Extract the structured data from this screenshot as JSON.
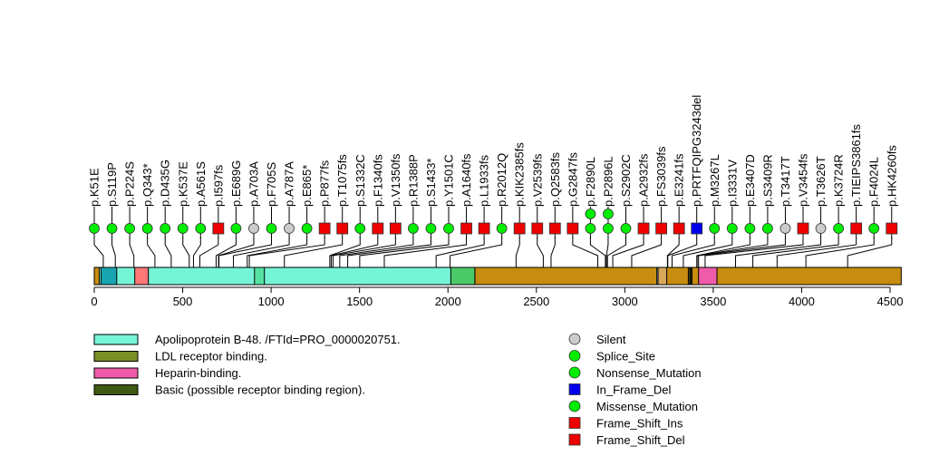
{
  "chart_data": {
    "type": "lollipop",
    "title": "",
    "protein_length": 4563,
    "xlim": [
      0,
      4563
    ],
    "x_ticks": [
      0,
      500,
      1000,
      1500,
      2000,
      2500,
      3000,
      3500,
      4000,
      4500
    ],
    "domains": [
      {
        "name": "Apolipoprotein B-48. /FTId=PRO_0000020751.",
        "start": 28,
        "end": 2152,
        "color": "#76F5D6"
      },
      {
        "name": "LDL receptor binding.",
        "start": 3359,
        "end": 3367,
        "color": "#7A8E23"
      },
      {
        "name": "Heparin-binding.",
        "start": 3417,
        "end": 3521,
        "color": "#EE5BA9"
      },
      {
        "name": "Basic (possible receptor binding region).",
        "start": 3372,
        "end": 3380,
        "color": "#3E5A12"
      }
    ],
    "bar_segments": [
      {
        "start": 0,
        "end": 4563,
        "color": "#C88C10"
      },
      {
        "start": 28,
        "end": 2152,
        "color": "#76F5D6"
      },
      {
        "start": 38,
        "end": 127,
        "color": "#19A6B0"
      },
      {
        "start": 229,
        "end": 306,
        "color": "#FF7777"
      },
      {
        "start": 906,
        "end": 962,
        "color": "#56E3A2"
      },
      {
        "start": 2016,
        "end": 2152,
        "color": "#4CCA6A"
      },
      {
        "start": 3181,
        "end": 3188,
        "color": "#A9E6F5"
      },
      {
        "start": 3188,
        "end": 3237,
        "color": "#D7A75A"
      },
      {
        "start": 3359,
        "end": 3367,
        "color": "#7A8E23"
      },
      {
        "start": 3372,
        "end": 3380,
        "color": "#3E5A12"
      },
      {
        "start": 3417,
        "end": 3521,
        "color": "#EE5BA9"
      }
    ],
    "mutation_types": [
      {
        "name": "Silent",
        "shape": "circle",
        "color": "#CCCCCC"
      },
      {
        "name": "Splice_Site",
        "shape": "circle",
        "color": "#00EE00"
      },
      {
        "name": "Nonsense_Mutation",
        "shape": "circle",
        "color": "#00EE00"
      },
      {
        "name": "In_Frame_Del",
        "shape": "square",
        "color": "#0000EE"
      },
      {
        "name": "Missense_Mutation",
        "shape": "circle",
        "color": "#00EE00"
      },
      {
        "name": "Frame_Shift_Ins",
        "shape": "square",
        "color": "#EE0000"
      },
      {
        "name": "Frame_Shift_Del",
        "shape": "square",
        "color": "#EE0000"
      }
    ],
    "mutations": [
      {
        "label": "p.K51E",
        "pos": 51,
        "type": "Missense_Mutation",
        "count": 1
      },
      {
        "label": "p.S119P",
        "pos": 119,
        "type": "Missense_Mutation",
        "count": 1
      },
      {
        "label": "p.P224S",
        "pos": 224,
        "type": "Missense_Mutation",
        "count": 1
      },
      {
        "label": "p.Q343*",
        "pos": 343,
        "type": "Nonsense_Mutation",
        "count": 1
      },
      {
        "label": "p.D435G",
        "pos": 435,
        "type": "Missense_Mutation",
        "count": 1
      },
      {
        "label": "p.K537E",
        "pos": 537,
        "type": "Missense_Mutation",
        "count": 1
      },
      {
        "label": "p.A561S",
        "pos": 561,
        "type": "Missense_Mutation",
        "count": 1
      },
      {
        "label": "p.I597fs",
        "pos": 597,
        "type": "Frame_Shift_Del",
        "count": 1
      },
      {
        "label": "p.E689G",
        "pos": 689,
        "type": "Missense_Mutation",
        "count": 1
      },
      {
        "label": "p.A703A",
        "pos": 703,
        "type": "Silent",
        "count": 1
      },
      {
        "label": "p.F705S",
        "pos": 705,
        "type": "Missense_Mutation",
        "count": 1
      },
      {
        "label": "p.A787A",
        "pos": 787,
        "type": "Silent",
        "count": 1
      },
      {
        "label": "p.E865*",
        "pos": 865,
        "type": "Nonsense_Mutation",
        "count": 1
      },
      {
        "label": "p.P877fs",
        "pos": 877,
        "type": "Frame_Shift_Del",
        "count": 1
      },
      {
        "label": "p.T1075fs",
        "pos": 1075,
        "type": "Frame_Shift_Del",
        "count": 1
      },
      {
        "label": "p.S1332C",
        "pos": 1332,
        "type": "Missense_Mutation",
        "count": 1
      },
      {
        "label": "p.F1340fs",
        "pos": 1340,
        "type": "Frame_Shift_Del",
        "count": 1
      },
      {
        "label": "p.V1350fs",
        "pos": 1350,
        "type": "Frame_Shift_Del",
        "count": 1
      },
      {
        "label": "p.R1388P",
        "pos": 1388,
        "type": "Missense_Mutation",
        "count": 1
      },
      {
        "label": "p.S1433*",
        "pos": 1433,
        "type": "Nonsense_Mutation",
        "count": 1
      },
      {
        "label": "p.Y1501C",
        "pos": 1501,
        "type": "Missense_Mutation",
        "count": 1
      },
      {
        "label": "p.A1640fs",
        "pos": 1640,
        "type": "Frame_Shift_Del",
        "count": 1
      },
      {
        "label": "p.L1933fs",
        "pos": 1933,
        "type": "Frame_Shift_Del",
        "count": 1
      },
      {
        "label": "p.R2012Q",
        "pos": 2012,
        "type": "Missense_Mutation",
        "count": 1
      },
      {
        "label": "p.KIK2385fs",
        "pos": 2385,
        "type": "Frame_Shift_Del",
        "count": 1
      },
      {
        "label": "p.V2539fs",
        "pos": 2539,
        "type": "Frame_Shift_Del",
        "count": 1
      },
      {
        "label": "p.Q2583fs",
        "pos": 2583,
        "type": "Frame_Shift_Del",
        "count": 1
      },
      {
        "label": "p.G2847fs",
        "pos": 2847,
        "type": "Frame_Shift_Del",
        "count": 1
      },
      {
        "label": "p.F2890L",
        "pos": 2890,
        "type": "Missense_Mutation",
        "count": 2
      },
      {
        "label": "p.P2896L",
        "pos": 2896,
        "type": "Missense_Mutation",
        "count": 2
      },
      {
        "label": "p.S2902C",
        "pos": 2902,
        "type": "Missense_Mutation",
        "count": 1
      },
      {
        "label": "p.A2932fs",
        "pos": 2932,
        "type": "Frame_Shift_Del",
        "count": 1
      },
      {
        "label": "p.FS3039fs",
        "pos": 3039,
        "type": "Frame_Shift_Del",
        "count": 1
      },
      {
        "label": "p.E3241fs",
        "pos": 3241,
        "type": "Frame_Shift_Del",
        "count": 1
      },
      {
        "label": "p.PRTFQIPG3243del",
        "pos": 3243,
        "type": "In_Frame_Del",
        "count": 1
      },
      {
        "label": "p.M3267L",
        "pos": 3267,
        "type": "Missense_Mutation",
        "count": 1
      },
      {
        "label": "p.I3331V",
        "pos": 3331,
        "type": "Missense_Mutation",
        "count": 1
      },
      {
        "label": "p.E3407D",
        "pos": 3407,
        "type": "Missense_Mutation",
        "count": 1
      },
      {
        "label": "p.S3409R",
        "pos": 3409,
        "type": "Missense_Mutation",
        "count": 1
      },
      {
        "label": "p.T3417T",
        "pos": 3417,
        "type": "Silent",
        "count": 1
      },
      {
        "label": "p.V3454fs",
        "pos": 3454,
        "type": "Frame_Shift_Del",
        "count": 1
      },
      {
        "label": "p.T3626T",
        "pos": 3626,
        "type": "Silent",
        "count": 1
      },
      {
        "label": "p.K3724R",
        "pos": 3724,
        "type": "Missense_Mutation",
        "count": 1
      },
      {
        "label": "p.TIEIPS3861fs",
        "pos": 3861,
        "type": "Frame_Shift_Del",
        "count": 1
      },
      {
        "label": "p.F4024L",
        "pos": 4024,
        "type": "Missense_Mutation",
        "count": 1
      },
      {
        "label": "p.HK4260fs",
        "pos": 4260,
        "type": "Frame_Shift_Del",
        "count": 1
      }
    ],
    "legend_domains": [
      {
        "label": "Apolipoprotein B-48. /FTId=PRO_0000020751.",
        "color": "#76F5D6"
      },
      {
        "label": "LDL receptor binding.",
        "color": "#7A8E23"
      },
      {
        "label": "Heparin-binding.",
        "color": "#EE5BA9"
      },
      {
        "label": "Basic (possible receptor binding region).",
        "color": "#3E5A12"
      }
    ],
    "legend_mutations": [
      {
        "label": "Silent",
        "shape": "circle",
        "color": "#CCCCCC"
      },
      {
        "label": "Splice_Site",
        "shape": "circle",
        "color": "#00EE00"
      },
      {
        "label": "Nonsense_Mutation",
        "shape": "circle",
        "color": "#00EE00"
      },
      {
        "label": "In_Frame_Del",
        "shape": "square",
        "color": "#0000EE"
      },
      {
        "label": "Missense_Mutation",
        "shape": "circle",
        "color": "#00EE00"
      },
      {
        "label": "Frame_Shift_Ins",
        "shape": "square",
        "color": "#EE0000"
      },
      {
        "label": "Frame_Shift_Del",
        "shape": "square",
        "color": "#EE0000"
      }
    ],
    "legend_placement": "bottom"
  }
}
